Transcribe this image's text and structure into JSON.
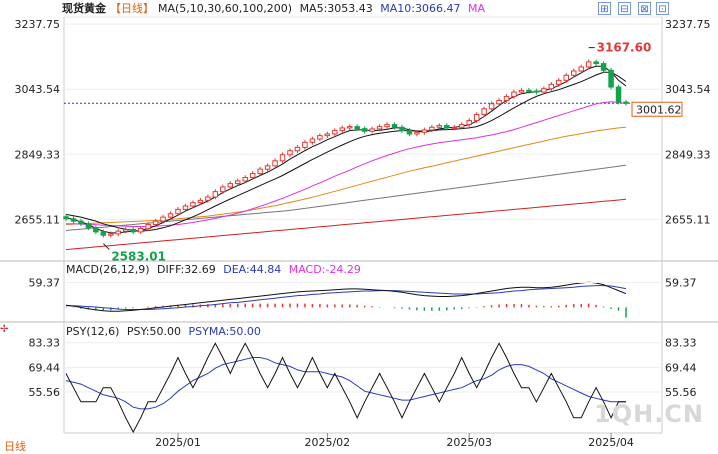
{
  "header": {
    "instrument": "现货黄金",
    "period": "【日线】",
    "ma_label": "MA(5,10,30,60,100,200)",
    "ma5": "MA5:3053.43",
    "ma10": "MA10:3066.47",
    "ma_extra": "MA"
  },
  "toolbar": {
    "b1": "⊞",
    "b2": "⊟",
    "b3": "⊠",
    "b4": "⊡"
  },
  "macd": {
    "label": "MACD(26,12,9)",
    "diff": "DIFF:32.69",
    "dea": "DEA:44.84",
    "macd": "MACD:-24.29"
  },
  "psy": {
    "label": "PSY(12,6)",
    "psy": "PSY:50.00",
    "psyma": "PSYMA:50.00"
  },
  "footer": {
    "period": "日线"
  },
  "watermark": "1QH.CN",
  "colors": {
    "up": "#e33a33",
    "down": "#13a34a",
    "ma5": "#111111",
    "ma10": "#111111",
    "ma30": "#e030e0",
    "ma60": "#e08a18",
    "ma100": "#777777",
    "ma200": "#cc2222",
    "psyma": "#2a3bb8",
    "accent": "#e06010"
  },
  "chart_data": {
    "type": "candlestick",
    "price_axis_ticks": [
      "3237.75",
      "3043.54",
      "2849.33",
      "2655.11"
    ],
    "price_axis_values": [
      3237.75,
      3043.54,
      2849.33,
      2655.11
    ],
    "price_range": [
      2540,
      3250
    ],
    "current_price": "3001.62",
    "current_value": 3001.62,
    "high_annotation": "3167.60",
    "high_value": 3167.6,
    "low_annotation": "2583.01",
    "low_value": 2583.01,
    "x_labels": [
      "2025/01",
      "2025/02",
      "2025/03",
      "2025/04"
    ],
    "x_label_index": [
      15,
      35,
      54,
      73
    ],
    "macd_axis_label": "59.37",
    "macd_axis_value": 59.37,
    "psy_axis_labels": [
      "83.33",
      "69.44",
      "55.56"
    ],
    "psy_axis_values": [
      83.33,
      69.44,
      55.56
    ],
    "close": [
      2657,
      2650,
      2642,
      2630,
      2618,
      2608,
      2612,
      2620,
      2625,
      2618,
      2628,
      2640,
      2650,
      2662,
      2672,
      2685,
      2695,
      2705,
      2712,
      2722,
      2738,
      2752,
      2762,
      2770,
      2780,
      2792,
      2805,
      2815,
      2830,
      2848,
      2860,
      2870,
      2885,
      2895,
      2905,
      2910,
      2920,
      2928,
      2932,
      2926,
      2918,
      2925,
      2932,
      2938,
      2930,
      2920,
      2910,
      2915,
      2922,
      2930,
      2935,
      2928,
      2930,
      2938,
      2950,
      2968,
      2985,
      3000,
      3010,
      3022,
      3035,
      3040,
      3038,
      3035,
      3045,
      3058,
      3070,
      3085,
      3098,
      3110,
      3125,
      3120,
      3100,
      3050,
      3005,
      3001.62
    ],
    "ma5": [
      2660,
      2655,
      2648,
      2640,
      2628,
      2620,
      2615,
      2615,
      2618,
      2620,
      2622,
      2628,
      2636,
      2646,
      2656,
      2668,
      2680,
      2690,
      2700,
      2710,
      2722,
      2735,
      2746,
      2756,
      2765,
      2776,
      2786,
      2796,
      2808,
      2820,
      2835,
      2848,
      2860,
      2872,
      2882,
      2893,
      2902,
      2912,
      2920,
      2922,
      2922,
      2920,
      2921,
      2924,
      2928,
      2928,
      2922,
      2918,
      2916,
      2920,
      2925,
      2928,
      2930,
      2933,
      2938,
      2948,
      2962,
      2978,
      2995,
      3010,
      3022,
      3030,
      3034,
      3036,
      3040,
      3045,
      3055,
      3066,
      3080,
      3092,
      3105,
      3112,
      3112,
      3095,
      3070,
      3053
    ],
    "ma10": [
      2670,
      2666,
      2662,
      2656,
      2650,
      2642,
      2636,
      2630,
      2626,
      2622,
      2620,
      2622,
      2625,
      2630,
      2636,
      2645,
      2654,
      2663,
      2673,
      2684,
      2695,
      2706,
      2716,
      2726,
      2736,
      2746,
      2756,
      2766,
      2776,
      2786,
      2798,
      2810,
      2822,
      2834,
      2845,
      2856,
      2867,
      2877,
      2887,
      2896,
      2903,
      2908,
      2912,
      2915,
      2918,
      2920,
      2920,
      2919,
      2919,
      2920,
      2922,
      2923,
      2924,
      2926,
      2928,
      2932,
      2940,
      2950,
      2962,
      2975,
      2988,
      3000,
      3012,
      3022,
      3030,
      3036,
      3042,
      3050,
      3058,
      3066,
      3076,
      3086,
      3094,
      3094,
      3082,
      3066.47
    ],
    "ma30": [
      2642,
      2642,
      2641,
      2640,
      2639,
      2638,
      2637,
      2636,
      2635,
      2634,
      2634,
      2634,
      2635,
      2636,
      2638,
      2640,
      2643,
      2646,
      2650,
      2654,
      2658,
      2663,
      2668,
      2674,
      2680,
      2687,
      2694,
      2702,
      2710,
      2718,
      2727,
      2736,
      2745,
      2755,
      2764,
      2774,
      2784,
      2793,
      2802,
      2812,
      2821,
      2830,
      2838,
      2846,
      2853,
      2860,
      2866,
      2871,
      2876,
      2880,
      2884,
      2887,
      2890,
      2893,
      2896,
      2899,
      2903,
      2907,
      2912,
      2917,
      2923,
      2930,
      2937,
      2944,
      2951,
      2958,
      2965,
      2972,
      2979,
      2986,
      2993,
      3000,
      3004,
      3006,
      3004,
      3001
    ],
    "ma60": [
      2640,
      2641,
      2642,
      2643,
      2644,
      2645,
      2646,
      2647,
      2648,
      2649,
      2650,
      2651,
      2652,
      2653,
      2655,
      2657,
      2659,
      2661,
      2663,
      2665,
      2668,
      2671,
      2674,
      2677,
      2680,
      2684,
      2688,
      2692,
      2696,
      2701,
      2706,
      2711,
      2716,
      2721,
      2727,
      2733,
      2739,
      2745,
      2751,
      2757,
      2763,
      2769,
      2775,
      2781,
      2787,
      2793,
      2799,
      2804,
      2809,
      2814,
      2819,
      2824,
      2829,
      2834,
      2839,
      2844,
      2849,
      2854,
      2859,
      2864,
      2869,
      2874,
      2879,
      2884,
      2889,
      2894,
      2899,
      2903,
      2907,
      2911,
      2915,
      2919,
      2922,
      2925,
      2928,
      2930
    ],
    "ma100": [
      2622,
      2624,
      2626,
      2628,
      2630,
      2632,
      2634,
      2636,
      2638,
      2640,
      2642,
      2644,
      2646,
      2648,
      2650,
      2652,
      2654,
      2656,
      2658,
      2660,
      2662,
      2664,
      2666,
      2668,
      2670,
      2672,
      2674,
      2676,
      2678,
      2680,
      2682,
      2685,
      2688,
      2691,
      2694,
      2697,
      2700,
      2703,
      2706,
      2709,
      2712,
      2715,
      2718,
      2721,
      2724,
      2727,
      2730,
      2733,
      2736,
      2739,
      2742,
      2745,
      2748,
      2751,
      2754,
      2757,
      2760,
      2763,
      2766,
      2769,
      2772,
      2775,
      2778,
      2781,
      2784,
      2787,
      2790,
      2793,
      2796,
      2799,
      2802,
      2805,
      2808,
      2811,
      2814,
      2817
    ],
    "ma200": [
      2565,
      2567,
      2569,
      2571,
      2573,
      2575,
      2577,
      2579,
      2581,
      2583,
      2585,
      2587,
      2589,
      2591,
      2593,
      2595,
      2597,
      2599,
      2601,
      2603,
      2605,
      2607,
      2609,
      2611,
      2613,
      2615,
      2617,
      2619,
      2621,
      2623,
      2625,
      2627,
      2629,
      2631,
      2633,
      2635,
      2637,
      2639,
      2641,
      2643,
      2645,
      2647,
      2649,
      2651,
      2653,
      2655,
      2657,
      2659,
      2661,
      2663,
      2665,
      2667,
      2669,
      2671,
      2673,
      2675,
      2677,
      2679,
      2681,
      2683,
      2685,
      2687,
      2689,
      2691,
      2693,
      2695,
      2697,
      2699,
      2701,
      2703,
      2705,
      2707,
      2709,
      2711,
      2713,
      2715
    ],
    "macd_diff": [
      5,
      3,
      0,
      -3,
      -6,
      -8,
      -9,
      -9,
      -8,
      -7,
      -5,
      -3,
      -1,
      1,
      3,
      5,
      7,
      9,
      11,
      13,
      15,
      17,
      19,
      21,
      23,
      25,
      27,
      29,
      31,
      33,
      35,
      37,
      38,
      39,
      40,
      41,
      42,
      43,
      44,
      44,
      43,
      42,
      41,
      40,
      38,
      36,
      33,
      30,
      28,
      27,
      26,
      26,
      27,
      28,
      30,
      33,
      36,
      39,
      42,
      45,
      47,
      48,
      48,
      47,
      47,
      48,
      50,
      53,
      56,
      58,
      60,
      58,
      54,
      47,
      40,
      32.69
    ],
    "macd_dea": [
      4,
      4,
      3,
      2,
      1,
      -1,
      -2,
      -4,
      -5,
      -5,
      -5,
      -5,
      -4,
      -3,
      -2,
      -1,
      1,
      2,
      4,
      5,
      7,
      9,
      11,
      12,
      14,
      16,
      18,
      20,
      22,
      24,
      26,
      28,
      29,
      31,
      32,
      34,
      35,
      36,
      37,
      38,
      39,
      39,
      40,
      40,
      40,
      39,
      38,
      37,
      36,
      35,
      34,
      33,
      32,
      32,
      32,
      32,
      33,
      34,
      35,
      37,
      39,
      40,
      42,
      43,
      44,
      45,
      46,
      47,
      48,
      50,
      51,
      52,
      52,
      51,
      48,
      44.84
    ],
    "macd_hist": [
      1,
      -1,
      -3,
      -5,
      -7,
      -7,
      -7,
      -5,
      -3,
      -2,
      0,
      2,
      3,
      4,
      5,
      6,
      6,
      7,
      7,
      8,
      8,
      8,
      8,
      9,
      9,
      9,
      9,
      9,
      9,
      9,
      9,
      9,
      9,
      8,
      8,
      7,
      7,
      7,
      7,
      6,
      4,
      3,
      1,
      0,
      -2,
      -3,
      -5,
      -7,
      -8,
      -8,
      -8,
      -7,
      -5,
      -4,
      -2,
      1,
      3,
      5,
      7,
      8,
      8,
      8,
      6,
      4,
      3,
      3,
      4,
      6,
      8,
      8,
      9,
      6,
      2,
      -4,
      -8,
      -24.29
    ],
    "psy": [
      66,
      58,
      50,
      50,
      50,
      58,
      58,
      50,
      41,
      33,
      41,
      50,
      50,
      58,
      66,
      75,
      66,
      58,
      66,
      75,
      83,
      75,
      66,
      75,
      83,
      75,
      66,
      58,
      66,
      75,
      66,
      58,
      66,
      75,
      66,
      58,
      66,
      58,
      50,
      41,
      50,
      58,
      66,
      58,
      50,
      41,
      50,
      58,
      66,
      58,
      50,
      58,
      66,
      75,
      66,
      58,
      66,
      75,
      83,
      75,
      66,
      58,
      58,
      50,
      58,
      66,
      58,
      50,
      41,
      41,
      50,
      58,
      50,
      41,
      50,
      50
    ],
    "psyma": [
      62,
      61,
      60,
      58,
      56,
      54,
      53,
      52,
      50,
      47,
      46,
      46,
      47,
      49,
      52,
      56,
      59,
      62,
      64,
      66,
      69,
      71,
      72,
      73,
      74,
      75,
      75,
      74,
      72,
      71,
      70,
      68,
      67,
      67,
      67,
      66,
      65,
      64,
      62,
      59,
      56,
      55,
      54,
      53,
      52,
      51,
      51,
      52,
      53,
      54,
      55,
      56,
      57,
      58,
      60,
      62,
      63,
      65,
      68,
      70,
      71,
      71,
      70,
      68,
      66,
      63,
      61,
      59,
      57,
      55,
      53,
      52,
      51,
      50,
      50,
      50
    ]
  }
}
